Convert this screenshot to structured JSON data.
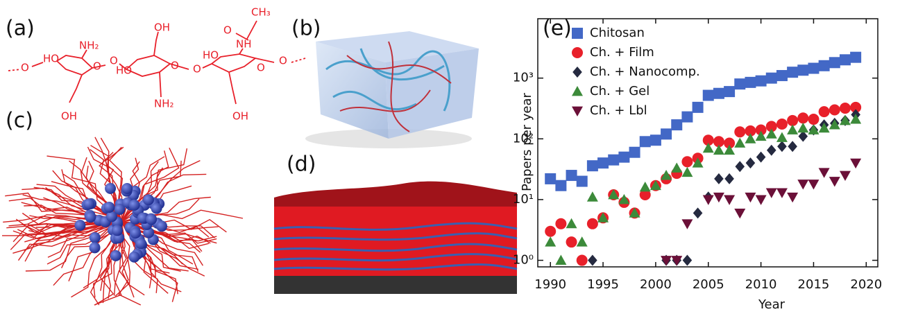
{
  "panels": [
    "(a)",
    "(b)",
    "(c)",
    "(d)"
  ],
  "structure": {
    "labels": [
      "O",
      "HO",
      "NH₂",
      "O",
      "O",
      "OH",
      "HO",
      "O",
      "NH₂",
      "O",
      "HO",
      "NH",
      "O",
      "CH₃",
      "O",
      "O",
      "OH",
      "OH"
    ]
  },
  "chart_data": {
    "type": "scatter",
    "title": "(e)",
    "x_label": "Year",
    "y_label": "Papers per year",
    "log_y": true,
    "legend": "upper-left",
    "xlim": [
      1988.8,
      2021.1
    ],
    "xticks": [
      1990,
      1995,
      2000,
      2005,
      2010,
      2015,
      2020
    ],
    "ylim": [
      0.78,
      9500
    ],
    "yticks": [
      {
        "value": 1,
        "label": "10⁰"
      },
      {
        "value": 10,
        "label": "10¹"
      },
      {
        "value": 100,
        "label": "10²"
      },
      {
        "value": 1000,
        "label": "10³"
      }
    ],
    "series": [
      {
        "name": "Chitosan",
        "color": "#4368c6",
        "marker": "square",
        "x": [
          1990,
          1991,
          1992,
          1993,
          1994,
          1995,
          1996,
          1997,
          1998,
          1999,
          2000,
          2001,
          2002,
          2003,
          2004,
          2005,
          2006,
          2007,
          2008,
          2009,
          2010,
          2011,
          2012,
          2013,
          2014,
          2015,
          2016,
          2017,
          2018,
          2019
        ],
        "values": [
          22,
          17,
          25,
          20,
          36,
          40,
          45,
          50,
          60,
          90,
          95,
          120,
          170,
          230,
          330,
          520,
          560,
          600,
          800,
          850,
          900,
          1000,
          1100,
          1250,
          1350,
          1450,
          1600,
          1800,
          2000,
          2200
        ]
      },
      {
        "name": "Ch. + Film",
        "color": "#e8202a",
        "marker": "circle",
        "x": [
          1990,
          1991,
          1992,
          1993,
          1994,
          1995,
          1996,
          1997,
          1998,
          1999,
          2000,
          2001,
          2002,
          2003,
          2004,
          2005,
          2006,
          2007,
          2008,
          2009,
          2010,
          2011,
          2012,
          2013,
          2014,
          2015,
          2016,
          2017,
          2018,
          2019
        ],
        "values": [
          3,
          4,
          2,
          1,
          4,
          5,
          12,
          9,
          6,
          12,
          17,
          22,
          27,
          42,
          48,
          95,
          90,
          85,
          130,
          135,
          140,
          160,
          175,
          200,
          220,
          210,
          280,
          300,
          320,
          330
        ]
      },
      {
        "name": "Ch. + Nanocomp.",
        "color": "#252a40",
        "marker": "diamond",
        "x": [
          1994,
          2001,
          2002,
          2003,
          2004,
          2005,
          2006,
          2007,
          2008,
          2009,
          2010,
          2011,
          2012,
          2013,
          2014,
          2015,
          2016,
          2017,
          2018,
          2019
        ],
        "values": [
          1,
          1,
          1,
          1,
          6,
          11,
          22,
          22,
          35,
          40,
          50,
          65,
          75,
          75,
          110,
          140,
          170,
          180,
          200,
          250
        ]
      },
      {
        "name": "Ch. + Gel",
        "color": "#3c8a3a",
        "marker": "triangle-up",
        "x": [
          1990,
          1991,
          1992,
          1993,
          1994,
          1995,
          1996,
          1997,
          1998,
          1999,
          2000,
          2001,
          2002,
          2003,
          2004,
          2005,
          2006,
          2007,
          2008,
          2009,
          2010,
          2011,
          2012,
          2013,
          2014,
          2015,
          2016,
          2017,
          2018,
          2019
        ],
        "values": [
          2,
          1,
          4,
          2,
          11,
          5,
          12,
          10,
          6,
          16,
          17,
          25,
          33,
          28,
          40,
          70,
          65,
          65,
          85,
          100,
          110,
          120,
          105,
          140,
          150,
          140,
          150,
          170,
          200,
          210
        ]
      },
      {
        "name": "Ch. + Lbl",
        "color": "#6b1038",
        "marker": "triangle-down",
        "x": [
          2001,
          2002,
          2003,
          2005,
          2006,
          2007,
          2008,
          2009,
          2010,
          2011,
          2012,
          2013,
          2014,
          2015,
          2016,
          2017,
          2018,
          2019
        ],
        "values": [
          1,
          1,
          4,
          10,
          11,
          10,
          6,
          11,
          10,
          13,
          13,
          11,
          18,
          18,
          28,
          20,
          25,
          40
        ]
      }
    ]
  }
}
